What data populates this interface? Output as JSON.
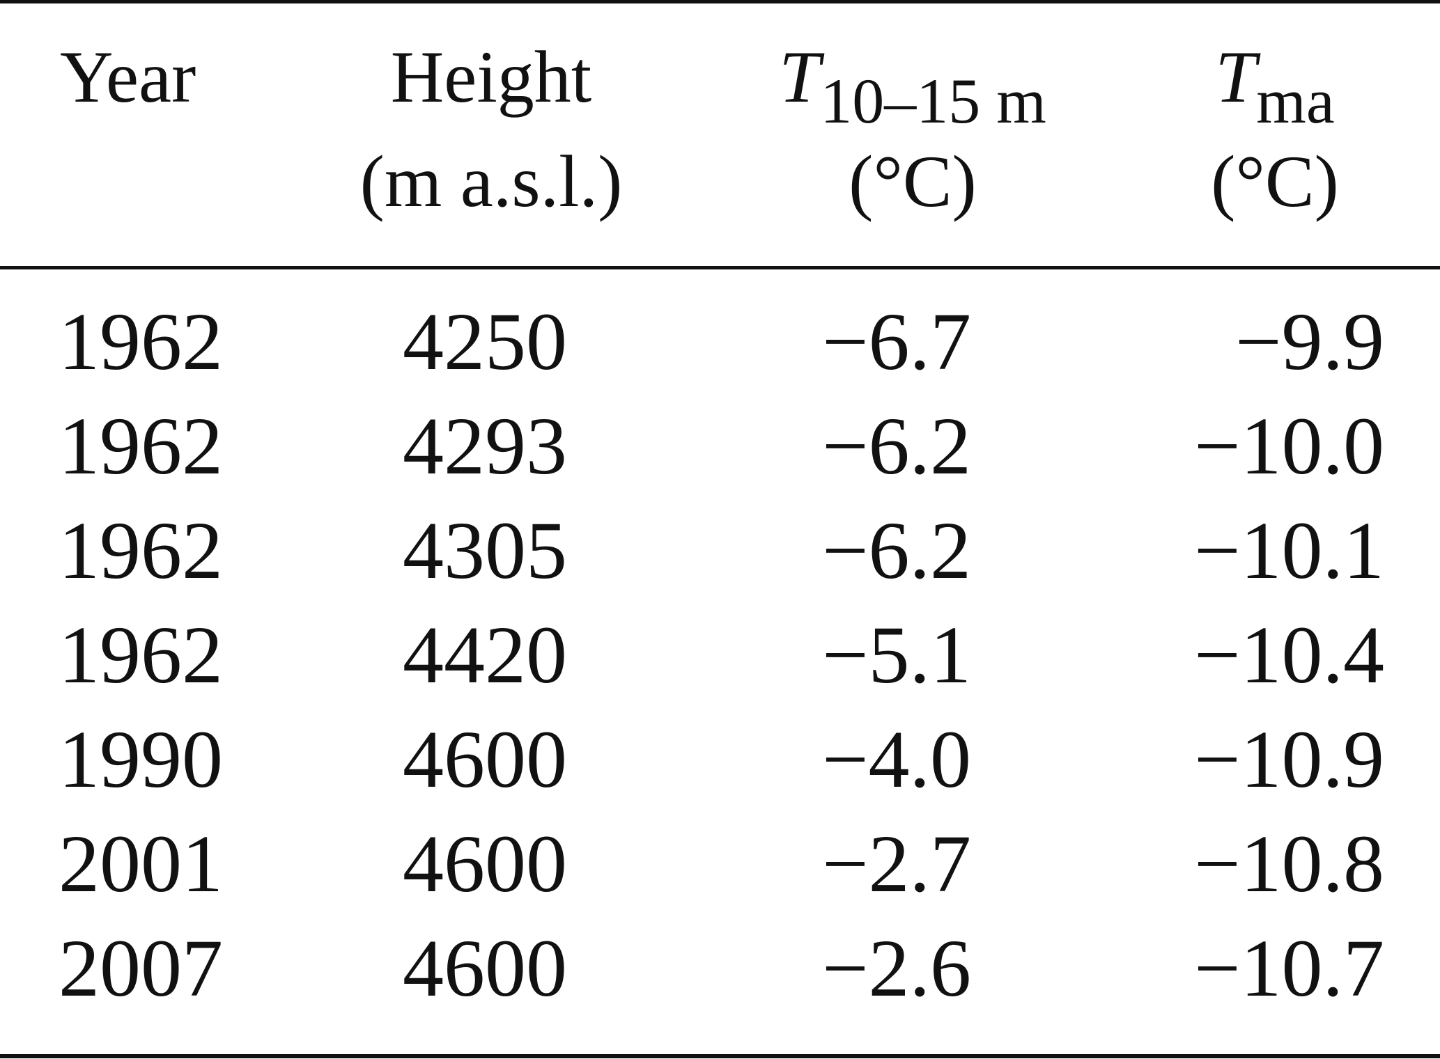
{
  "table": {
    "headers": {
      "year": "Year",
      "height_line1": "Height",
      "height_line2": "(m a.s.l.)",
      "t10_symbol": "T",
      "t10_subscript": "10–15 m",
      "t10_unit": "(°C)",
      "tma_symbol": "T",
      "tma_subscript": "ma",
      "tma_unit": "(°C)"
    },
    "rows": [
      {
        "year": "1962",
        "height": "4250",
        "t10": "−6.7",
        "tma": "−9.9"
      },
      {
        "year": "1962",
        "height": "4293",
        "t10": "−6.2",
        "tma": "−10.0"
      },
      {
        "year": "1962",
        "height": "4305",
        "t10": "−6.2",
        "tma": "−10.1"
      },
      {
        "year": "1962",
        "height": "4420",
        "t10": "−5.1",
        "tma": "−10.4"
      },
      {
        "year": "1990",
        "height": "4600",
        "t10": "−4.0",
        "tma": "−10.9"
      },
      {
        "year": "2001",
        "height": "4600",
        "t10": "−2.7",
        "tma": "−10.8"
      },
      {
        "year": "2007",
        "height": "4600",
        "t10": "−2.6",
        "tma": "−10.7"
      }
    ]
  }
}
